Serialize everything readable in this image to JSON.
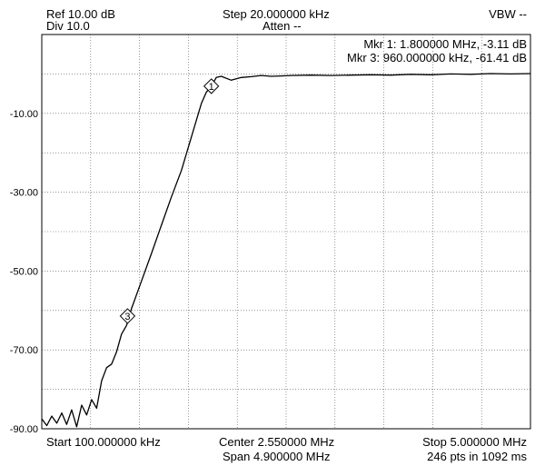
{
  "header": {
    "ref": "Ref 10.00 dB",
    "div": "Div 10.0",
    "step": "Step 20.000000 kHz",
    "atten": "Atten --",
    "vbw": "VBW --"
  },
  "markers_readout": {
    "mkr1": "Mkr 1: 1.800000 MHz, -3.11 dB",
    "mkr3": "Mkr 3: 960.000000 kHz, -61.41 dB"
  },
  "footer": {
    "start": "Start 100.000000 kHz",
    "center": "Center 2.550000 MHz",
    "span": "Span 4.900000 MHz",
    "stop": "Stop 5.000000 MHz",
    "points": "246 pts in 1092 ms"
  },
  "colors": {
    "trace": "#000000",
    "grid": "#555555",
    "background": "#ffffff"
  },
  "chart_data": {
    "type": "line",
    "xlim": [
      0.1,
      5.0
    ],
    "ylim": [
      -90,
      10
    ],
    "x_unit": "MHz",
    "y_unit": "dB",
    "grid": true,
    "ytick_labels": [
      "-10.00",
      "-30.00",
      "-50.00",
      "-70.00",
      "-90.00"
    ],
    "ytick_values": [
      -10,
      -30,
      -50,
      -70,
      -90
    ],
    "series": [
      {
        "x": [
          0.1,
          0.15,
          0.2,
          0.25,
          0.3,
          0.35,
          0.4,
          0.45,
          0.5,
          0.55,
          0.6,
          0.65,
          0.7,
          0.75,
          0.8,
          0.85,
          0.9,
          0.95,
          1.0,
          1.1,
          1.2,
          1.3,
          1.4,
          1.5,
          1.6,
          1.7,
          1.75,
          1.8,
          1.85,
          1.9,
          2.0,
          2.1,
          2.2,
          2.3,
          2.4,
          2.5,
          2.6,
          2.8,
          3.0,
          3.2,
          3.4,
          3.6,
          3.8,
          4.0,
          4.2,
          4.4,
          4.6,
          4.8,
          5.0
        ],
        "y": [
          -87.5,
          -89.2,
          -86.8,
          -88.6,
          -86.0,
          -88.9,
          -85.2,
          -89.5,
          -84.0,
          -86.5,
          -82.6,
          -84.8,
          -77.8,
          -74.5,
          -73.6,
          -70.5,
          -66.0,
          -63.8,
          -59.5,
          -52.5,
          -45.5,
          -38.3,
          -31.2,
          -24.5,
          -16.0,
          -7.5,
          -4.6,
          -3.11,
          -0.9,
          -0.6,
          -1.6,
          -0.9,
          -0.7,
          -0.4,
          -0.6,
          -0.5,
          -0.4,
          -0.3,
          -0.4,
          -0.3,
          -0.2,
          -0.3,
          -0.1,
          -0.2,
          0.0,
          -0.1,
          0.1,
          0.0,
          0.1
        ]
      }
    ],
    "markers": [
      {
        "label": "1",
        "x": 1.8,
        "y": -3.11
      },
      {
        "label": "3",
        "x": 0.96,
        "y": -61.41
      }
    ]
  }
}
